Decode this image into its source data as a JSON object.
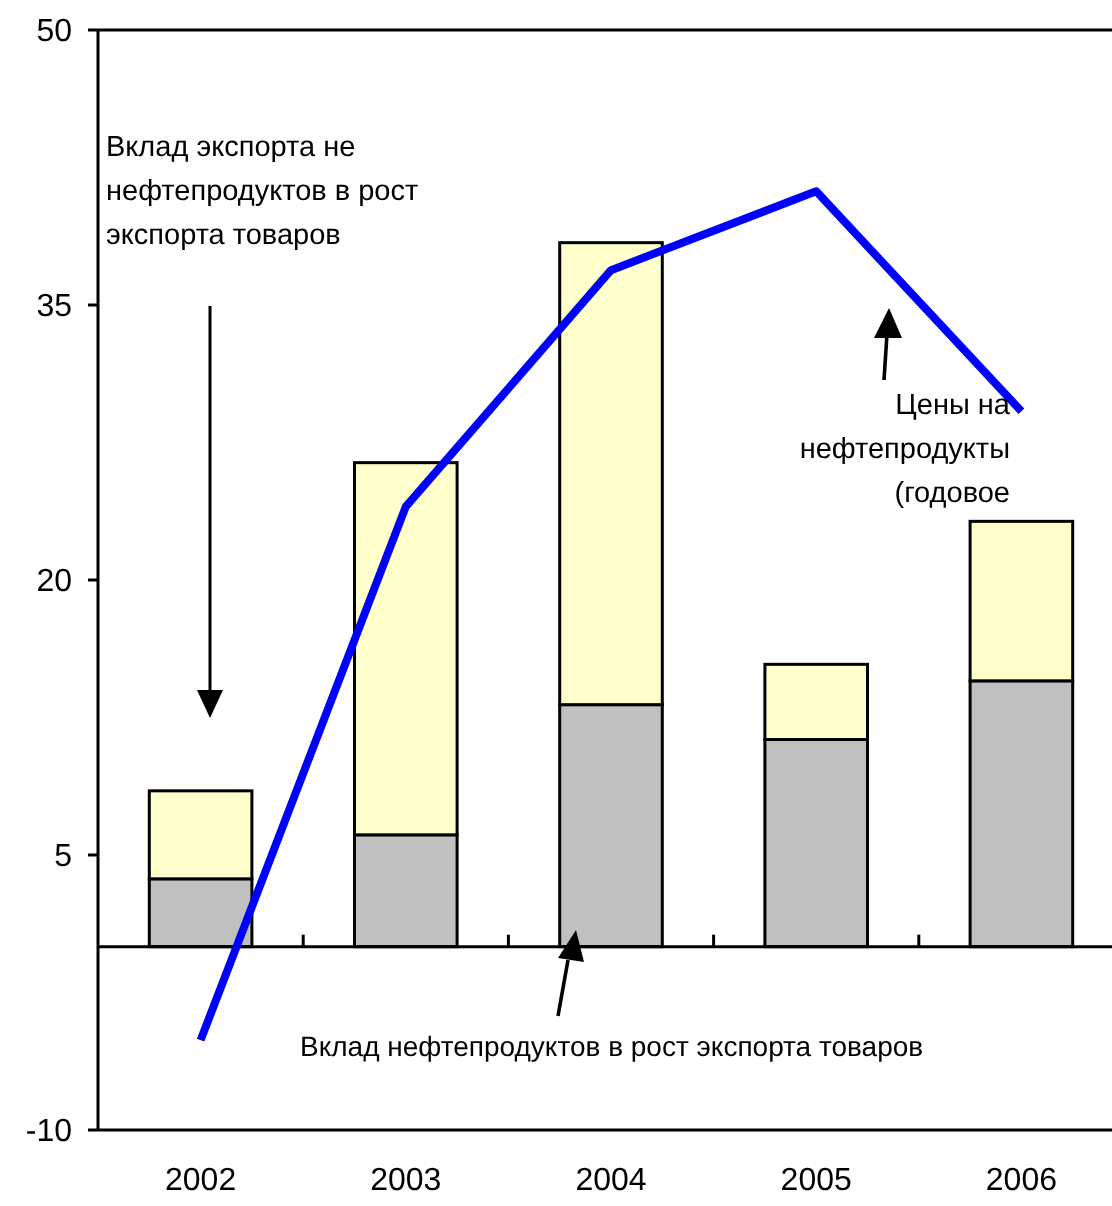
{
  "chart_data": {
    "type": "bar",
    "stacked": true,
    "categories": [
      "2002",
      "2003",
      "2004",
      "2005",
      "2006"
    ],
    "series": [
      {
        "color": "#c0c0c0",
        "values": [
          3.7,
          6.1,
          13.2,
          11.3,
          14.5
        ]
      },
      {
        "color": "#ffffcc",
        "values": [
          4.8,
          20.3,
          25.2,
          4.1,
          8.7
        ]
      },
      {
        "type": "line",
        "color": "#0000ff",
        "values": [
          -5.1,
          24.0,
          36.9,
          41.2,
          29.2
        ]
      }
    ],
    "ylim": [
      -10,
      50
    ],
    "yticks": [
      -10,
      5,
      20,
      35,
      50
    ],
    "annotations": [
      "Вклад экспорта не\nнефтепродуктов в рост\nэкспорта товаров",
      "Цены на\nнефтепродукты\n(годовое",
      "Вклад нефтепродуктов в рост экспорта товаров"
    ]
  }
}
